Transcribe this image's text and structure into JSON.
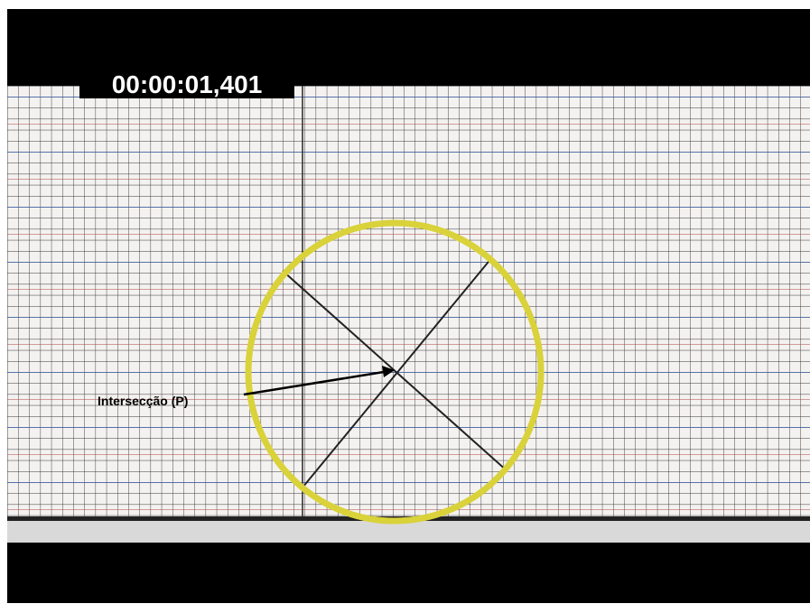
{
  "timestamp": "00:00:01,401",
  "annotation": "Intersecção (P)"
}
